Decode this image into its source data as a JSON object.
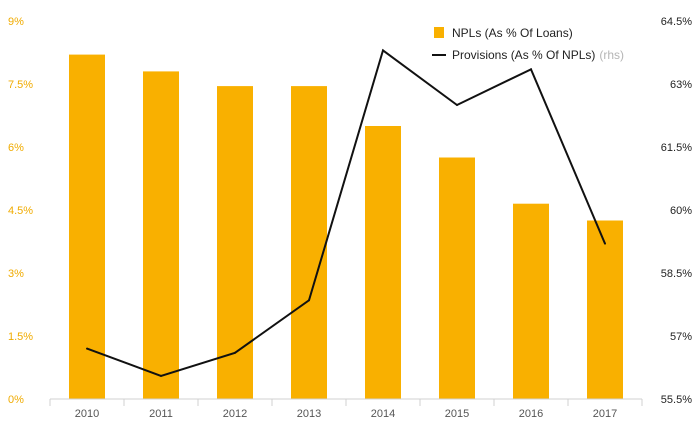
{
  "chart_data": {
    "type": "bar",
    "categories": [
      "2010",
      "2011",
      "2012",
      "2013",
      "2014",
      "2015",
      "2016",
      "2017"
    ],
    "series": [
      {
        "name": "NPLs (As % Of Loans)",
        "type": "bar",
        "axis": "left",
        "color": "#f9b000",
        "values": [
          8.2,
          7.8,
          7.45,
          7.45,
          6.5,
          5.75,
          4.65,
          4.25
        ]
      },
      {
        "name": "Provisions (As % Of NPLs)",
        "name_suffix": "(rhs)",
        "type": "line",
        "axis": "right",
        "color": "#111111",
        "values": [
          56.7,
          56.05,
          56.6,
          57.85,
          63.8,
          62.5,
          63.35,
          59.2
        ]
      }
    ],
    "y_left": {
      "ylim": [
        0,
        9
      ],
      "ticks": [
        0,
        1.5,
        3,
        4.5,
        6,
        7.5,
        9
      ],
      "tick_labels": [
        "0%",
        "1.5%",
        "3%",
        "4.5%",
        "6%",
        "7.5%",
        "9%"
      ]
    },
    "y_right": {
      "ylim": [
        55.5,
        64.5
      ],
      "ticks": [
        55.5,
        57,
        58.5,
        60,
        61.5,
        63,
        64.5
      ],
      "tick_labels": [
        "55.5%",
        "57%",
        "58.5%",
        "60%",
        "61.5%",
        "63%",
        "64.5%"
      ]
    },
    "grid": false,
    "legend_position": "top-right"
  }
}
